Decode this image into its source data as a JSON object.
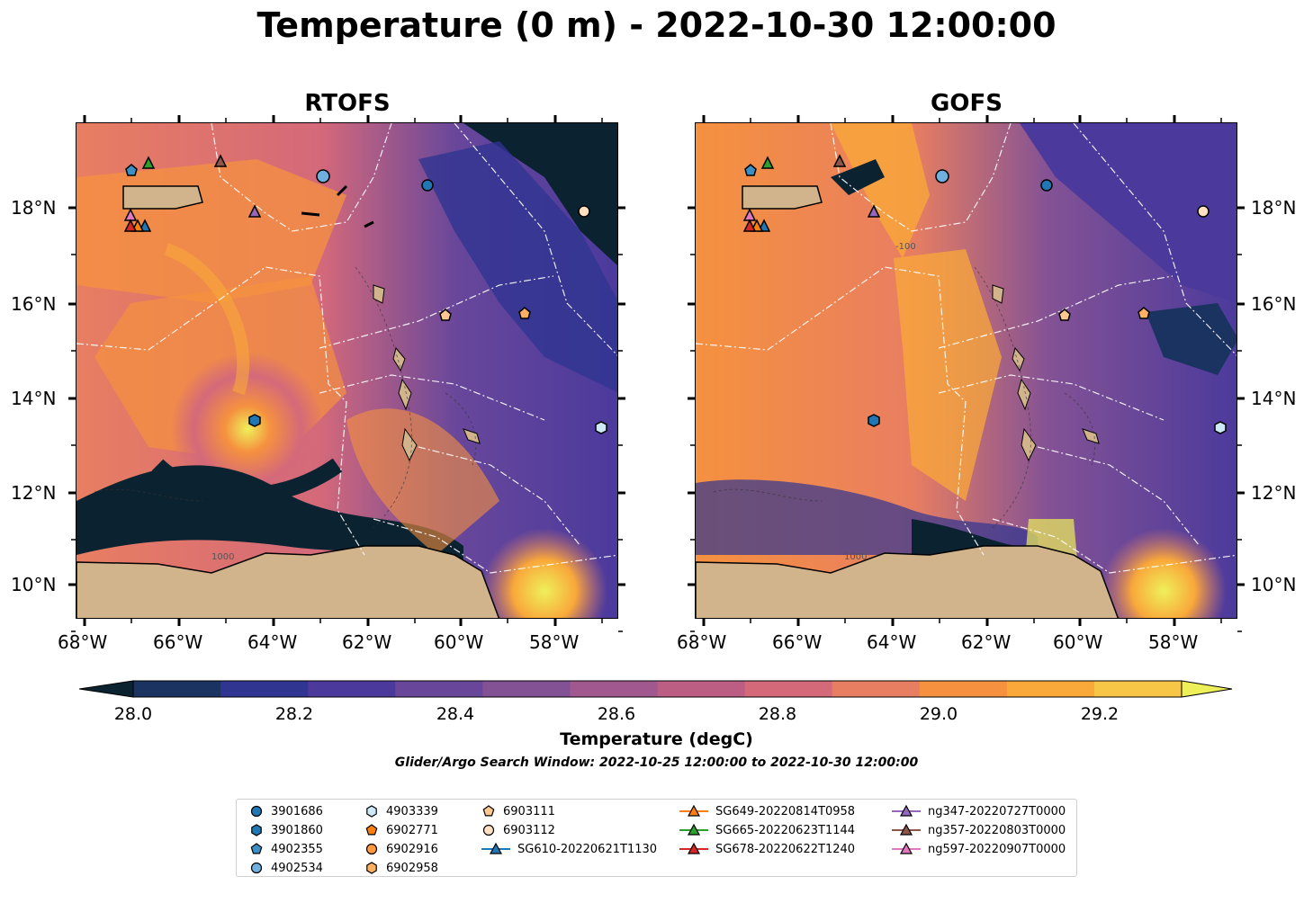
{
  "title": "Temperature (0 m) - 2022-10-30 12:00:00",
  "panels": [
    {
      "title": "RTOFS"
    },
    {
      "title": "GOFS"
    }
  ],
  "lon_ticks": [
    "68°W",
    "66°W",
    "64°W",
    "62°W",
    "60°W",
    "58°W"
  ],
  "lat_ticks": [
    "18°N",
    "16°N",
    "14°N",
    "12°N",
    "10°N"
  ],
  "colorbar": {
    "label": "Temperature (degC)",
    "ticks": [
      "28.0",
      "28.2",
      "28.4",
      "28.6",
      "28.8",
      "29.0",
      "29.2"
    ],
    "colors": [
      "#0b2230",
      "#1a3361",
      "#2f3591",
      "#4b3a9c",
      "#68479b",
      "#835295",
      "#a0588e",
      "#bc5e84",
      "#d4697a",
      "#e87e61",
      "#f5913f",
      "#f9a83a",
      "#f7c646",
      "#eef05a"
    ]
  },
  "search_window": "Glider/Argo Search Window: 2022-10-25 12:00:00 to 2022-10-30 12:00:00",
  "contour_labels": [
    "1000",
    "-100",
    "1000"
  ],
  "legend": {
    "columns": [
      [
        {
          "label": "3901686",
          "marker": "circle",
          "color": "#1f77b4"
        },
        {
          "label": "3901860",
          "marker": "hexagon",
          "color": "#1f77b4"
        },
        {
          "label": "4902355",
          "marker": "pentagon",
          "color": "#3b8fc5"
        },
        {
          "label": "4902534",
          "marker": "circle",
          "color": "#6fb0e0"
        }
      ],
      [
        {
          "label": "4903339",
          "marker": "hexagon",
          "color": "#cde8f7"
        },
        {
          "label": "6902771",
          "marker": "pentagon",
          "color": "#ff7f0e"
        },
        {
          "label": "6902916",
          "marker": "circle",
          "color": "#ff9a40"
        },
        {
          "label": "6902958",
          "marker": "hexagon",
          "color": "#ffb060"
        }
      ],
      [
        {
          "label": "6903111",
          "marker": "pentagon",
          "color": "#ffc890"
        },
        {
          "label": "6903112",
          "marker": "circle",
          "color": "#ffe0c0"
        },
        {
          "label": "SG610-20220621T1130",
          "marker": "triangle-line",
          "color": "#1f77b4"
        }
      ],
      [
        {
          "label": "SG649-20220814T0958",
          "marker": "triangle-line",
          "color": "#ff7f0e"
        },
        {
          "label": "SG665-20220623T1144",
          "marker": "triangle-line",
          "color": "#2ca02c"
        },
        {
          "label": "SG678-20220622T1240",
          "marker": "triangle-line",
          "color": "#d62728"
        }
      ],
      [
        {
          "label": "ng347-20220727T0000",
          "marker": "triangle-line",
          "color": "#9467bd"
        },
        {
          "label": "ng357-20220803T0000",
          "marker": "triangle-line",
          "color": "#8c564b"
        },
        {
          "label": "ng597-20220907T0000",
          "marker": "triangle-line",
          "color": "#e377c2"
        }
      ]
    ]
  }
}
